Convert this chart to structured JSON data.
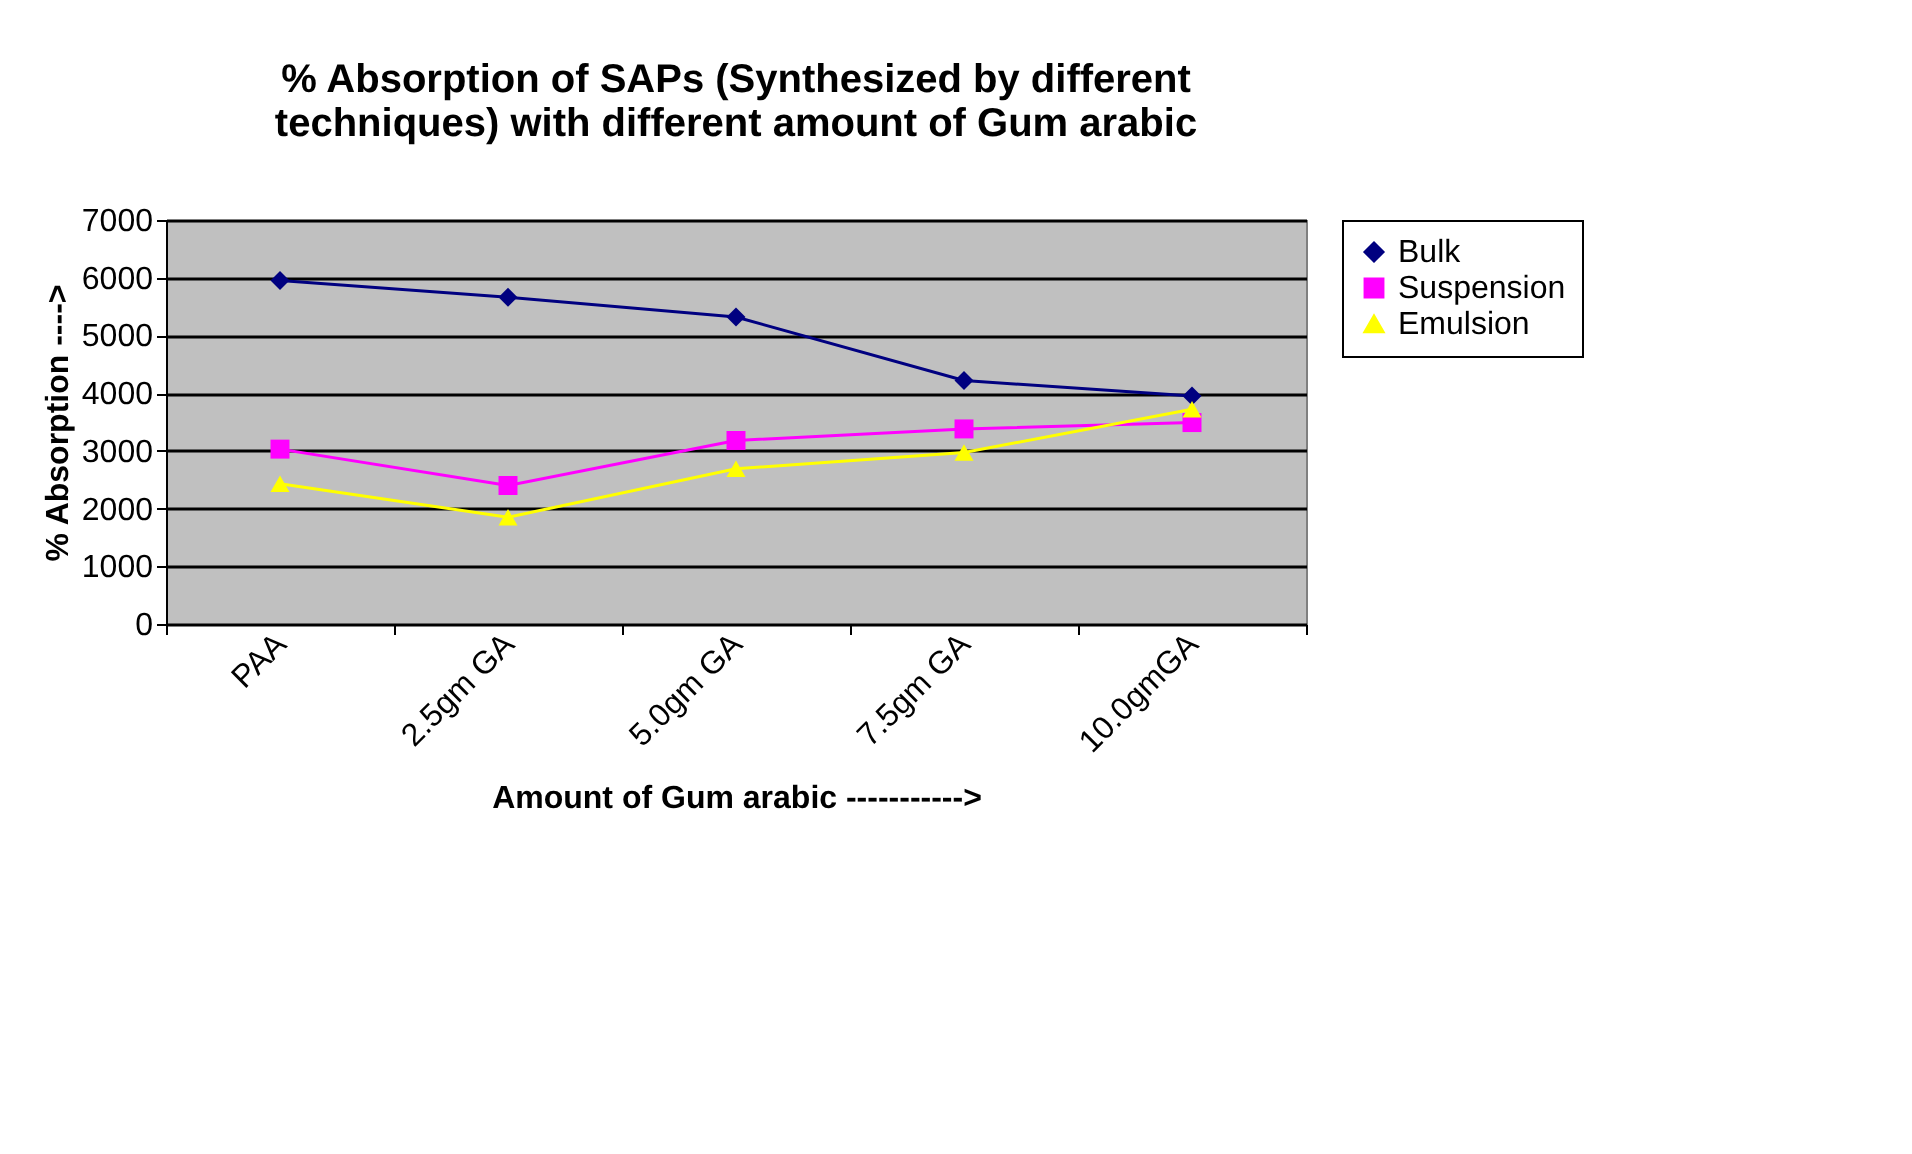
{
  "chart_data": {
    "type": "line",
    "title": [
      "% Absorption of SAPs (Synthesized by different",
      "techniques) with different amount of Gum arabic"
    ],
    "xlabel": "Amount of Gum arabic ----------->",
    "ylabel": "% Absorption ---->",
    "categories": [
      "PAA",
      "2.5gm GA",
      "5.0gm GA",
      "7.5gm GA",
      "10.0gmGA"
    ],
    "series": [
      {
        "name": "Bulk",
        "color": "#000080",
        "marker": "diamond",
        "values": [
          5950,
          5660,
          5320,
          4220,
          3950
        ]
      },
      {
        "name": "Suspension",
        "color": "#ff00ff",
        "marker": "square",
        "values": [
          3030,
          2400,
          3180,
          3380,
          3490
        ]
      },
      {
        "name": "Emulsion",
        "color": "#ffff00",
        "marker": "triangle",
        "values": [
          2430,
          1850,
          2690,
          2970,
          3720
        ]
      }
    ],
    "ylim": [
      0,
      7000
    ],
    "yticks": [
      0,
      1000,
      2000,
      3000,
      4000,
      5000,
      6000,
      7000
    ],
    "grid": "y",
    "legend": "right"
  }
}
